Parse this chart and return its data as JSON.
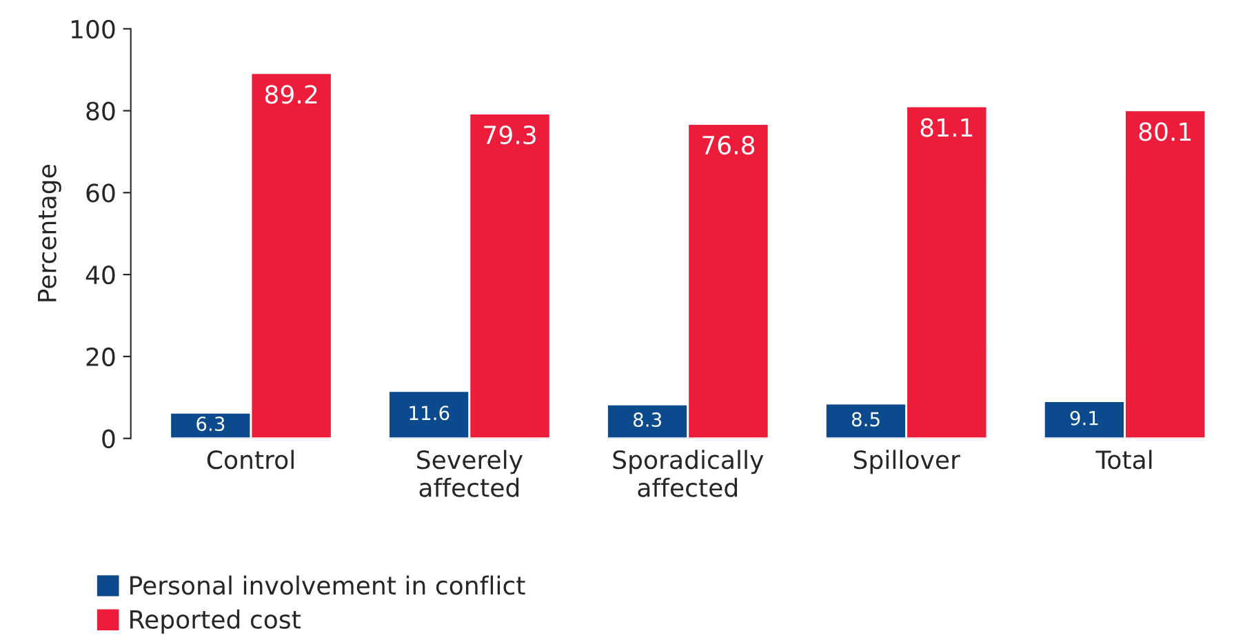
{
  "chart_data": {
    "type": "bar",
    "ylabel": "Percentage",
    "categories": [
      "Control",
      "Severely\naffected",
      "Sporadically\naffected",
      "Spillover",
      "Total"
    ],
    "series": [
      {
        "name": "Personal involvement in conflict",
        "color": "#0b4a8c",
        "values": [
          6.3,
          11.6,
          8.3,
          8.5,
          9.1
        ]
      },
      {
        "name": "Reported cost",
        "color": "#ec1c3a",
        "values": [
          89.2,
          79.3,
          76.8,
          81.1,
          80.1
        ]
      }
    ],
    "ylim": [
      0,
      100
    ],
    "yticks": [
      0,
      20,
      40,
      60,
      80,
      100
    ],
    "grid": false,
    "legend": "bottom left",
    "data_labels": true
  }
}
